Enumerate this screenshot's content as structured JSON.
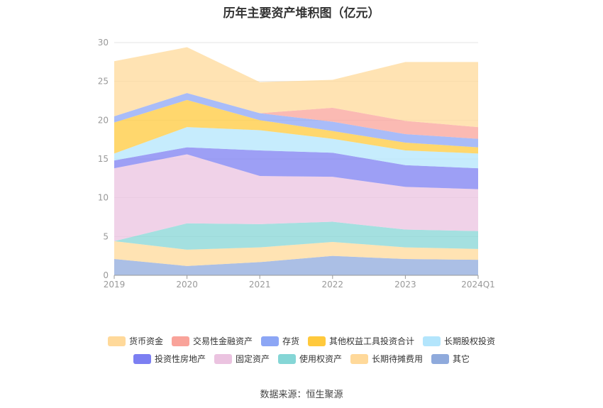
{
  "chart_data": {
    "type": "area",
    "stacked": true,
    "title": "历年主要资产堆积图（亿元）",
    "x": [
      "2019",
      "2020",
      "2021",
      "2022",
      "2023",
      "2024Q1"
    ],
    "ylim": [
      0,
      30
    ],
    "yticks": [
      "0",
      "5",
      "10",
      "15",
      "20",
      "25",
      "30"
    ],
    "grid": true,
    "legend_position": "bottom",
    "series": [
      {
        "name": "其它",
        "color": "#8faadc",
        "values": [
          2.1,
          1.2,
          1.7,
          2.5,
          2.1,
          2.0
        ]
      },
      {
        "name": "长期待摊费用",
        "color": "#ffd99a",
        "values": [
          2.3,
          2.1,
          1.9,
          1.8,
          1.5,
          1.4
        ]
      },
      {
        "name": "使用权资产",
        "color": "#85d6d6",
        "values": [
          0.0,
          3.4,
          3.0,
          2.6,
          2.3,
          2.3
        ]
      },
      {
        "name": "固定资产",
        "color": "#ebc3e0",
        "values": [
          9.4,
          8.9,
          6.2,
          5.8,
          5.5,
          5.4
        ]
      },
      {
        "name": "投资性房地产",
        "color": "#7c7ff2",
        "values": [
          1.0,
          0.9,
          3.3,
          3.1,
          2.8,
          2.7
        ]
      },
      {
        "name": "长期股权投资",
        "color": "#b3e5fc",
        "values": [
          0.9,
          2.6,
          2.6,
          1.8,
          1.9,
          1.9
        ]
      },
      {
        "name": "其他权益工具投资合计",
        "color": "#ffc93c",
        "values": [
          4.0,
          3.5,
          1.3,
          1.0,
          1.0,
          0.8
        ]
      },
      {
        "name": "存货",
        "color": "#8ca6f5",
        "values": [
          0.8,
          0.9,
          0.9,
          1.2,
          1.1,
          1.1
        ]
      },
      {
        "name": "交易性金融资产",
        "color": "#f9a39a",
        "values": [
          0.0,
          0.0,
          0.0,
          1.8,
          1.7,
          1.5
        ]
      },
      {
        "name": "货币资金",
        "color": "#ffd99a",
        "values": [
          7.1,
          5.9,
          4.0,
          3.6,
          7.6,
          8.4
        ]
      }
    ]
  },
  "legend_rows": [
    [
      {
        "name": "货币资金",
        "color": "#ffd99a"
      },
      {
        "name": "交易性金融资产",
        "color": "#f9a39a"
      },
      {
        "name": "存货",
        "color": "#8ca6f5"
      },
      {
        "name": "其他权益工具投资合计",
        "color": "#ffc93c"
      },
      {
        "name": "长期股权投资",
        "color": "#b3e5fc"
      }
    ],
    [
      {
        "name": "投资性房地产",
        "color": "#7c7ff2"
      },
      {
        "name": "固定资产",
        "color": "#ebc3e0"
      },
      {
        "name": "使用权资产",
        "color": "#85d6d6"
      },
      {
        "name": "长期待摊费用",
        "color": "#ffd99a"
      },
      {
        "name": "其它",
        "color": "#8faadc"
      }
    ]
  ],
  "source": "数据来源：恒生聚源"
}
